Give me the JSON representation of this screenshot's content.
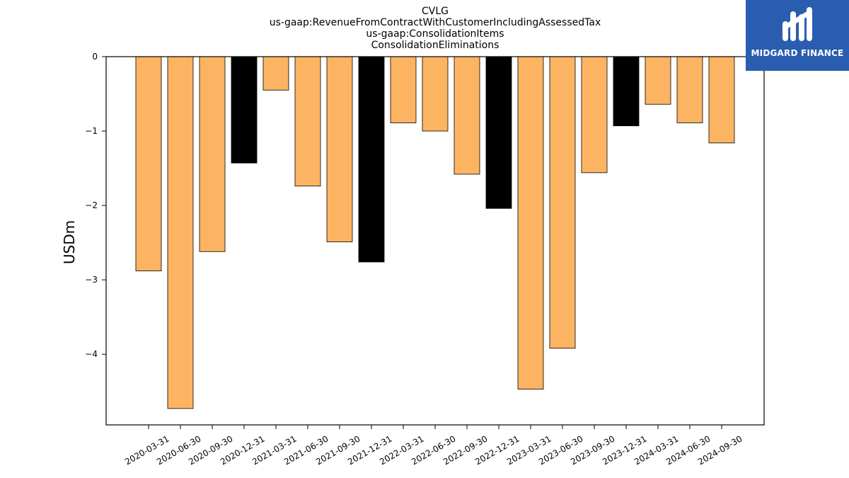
{
  "chart_data": {
    "type": "bar",
    "title_lines": [
      "CVLG",
      "us-gaap:RevenueFromContractWithCustomerIncludingAssessedTax",
      "us-gaap:ConsolidationItems",
      "ConsolidationEliminations"
    ],
    "xlabel": "",
    "ylabel": "USDm",
    "ylim": [
      -4.95,
      0
    ],
    "yticks": [
      0,
      -1,
      -2,
      -3,
      -4
    ],
    "ytick_labels": [
      "0",
      "−1",
      "−2",
      "−3",
      "−4"
    ],
    "grid": false,
    "categories": [
      "2020-03-31",
      "2020-06-30",
      "2020-09-30",
      "2020-12-31",
      "2021-03-31",
      "2021-06-30",
      "2021-09-30",
      "2021-12-31",
      "2022-03-31",
      "2022-06-30",
      "2022-09-30",
      "2022-12-31",
      "2023-03-31",
      "2023-06-30",
      "2023-09-30",
      "2023-12-31",
      "2024-03-31",
      "2024-06-30",
      "2024-09-30"
    ],
    "values": [
      -2.88,
      -4.73,
      -2.62,
      -1.43,
      -0.45,
      -1.74,
      -2.49,
      -2.76,
      -0.89,
      -1.0,
      -1.58,
      -2.04,
      -4.47,
      -3.92,
      -1.56,
      -0.93,
      -0.64,
      -0.89,
      -1.16
    ],
    "bar_colors": [
      "#fdb462",
      "#fdb462",
      "#fdb462",
      "#000000",
      "#fdb462",
      "#fdb462",
      "#fdb462",
      "#000000",
      "#fdb462",
      "#fdb462",
      "#fdb462",
      "#000000",
      "#fdb462",
      "#fdb462",
      "#fdb462",
      "#000000",
      "#fdb462",
      "#fdb462",
      "#fdb462"
    ]
  },
  "logo": {
    "text": "MIDGARD FINANCE",
    "background": "#2a5db0"
  }
}
